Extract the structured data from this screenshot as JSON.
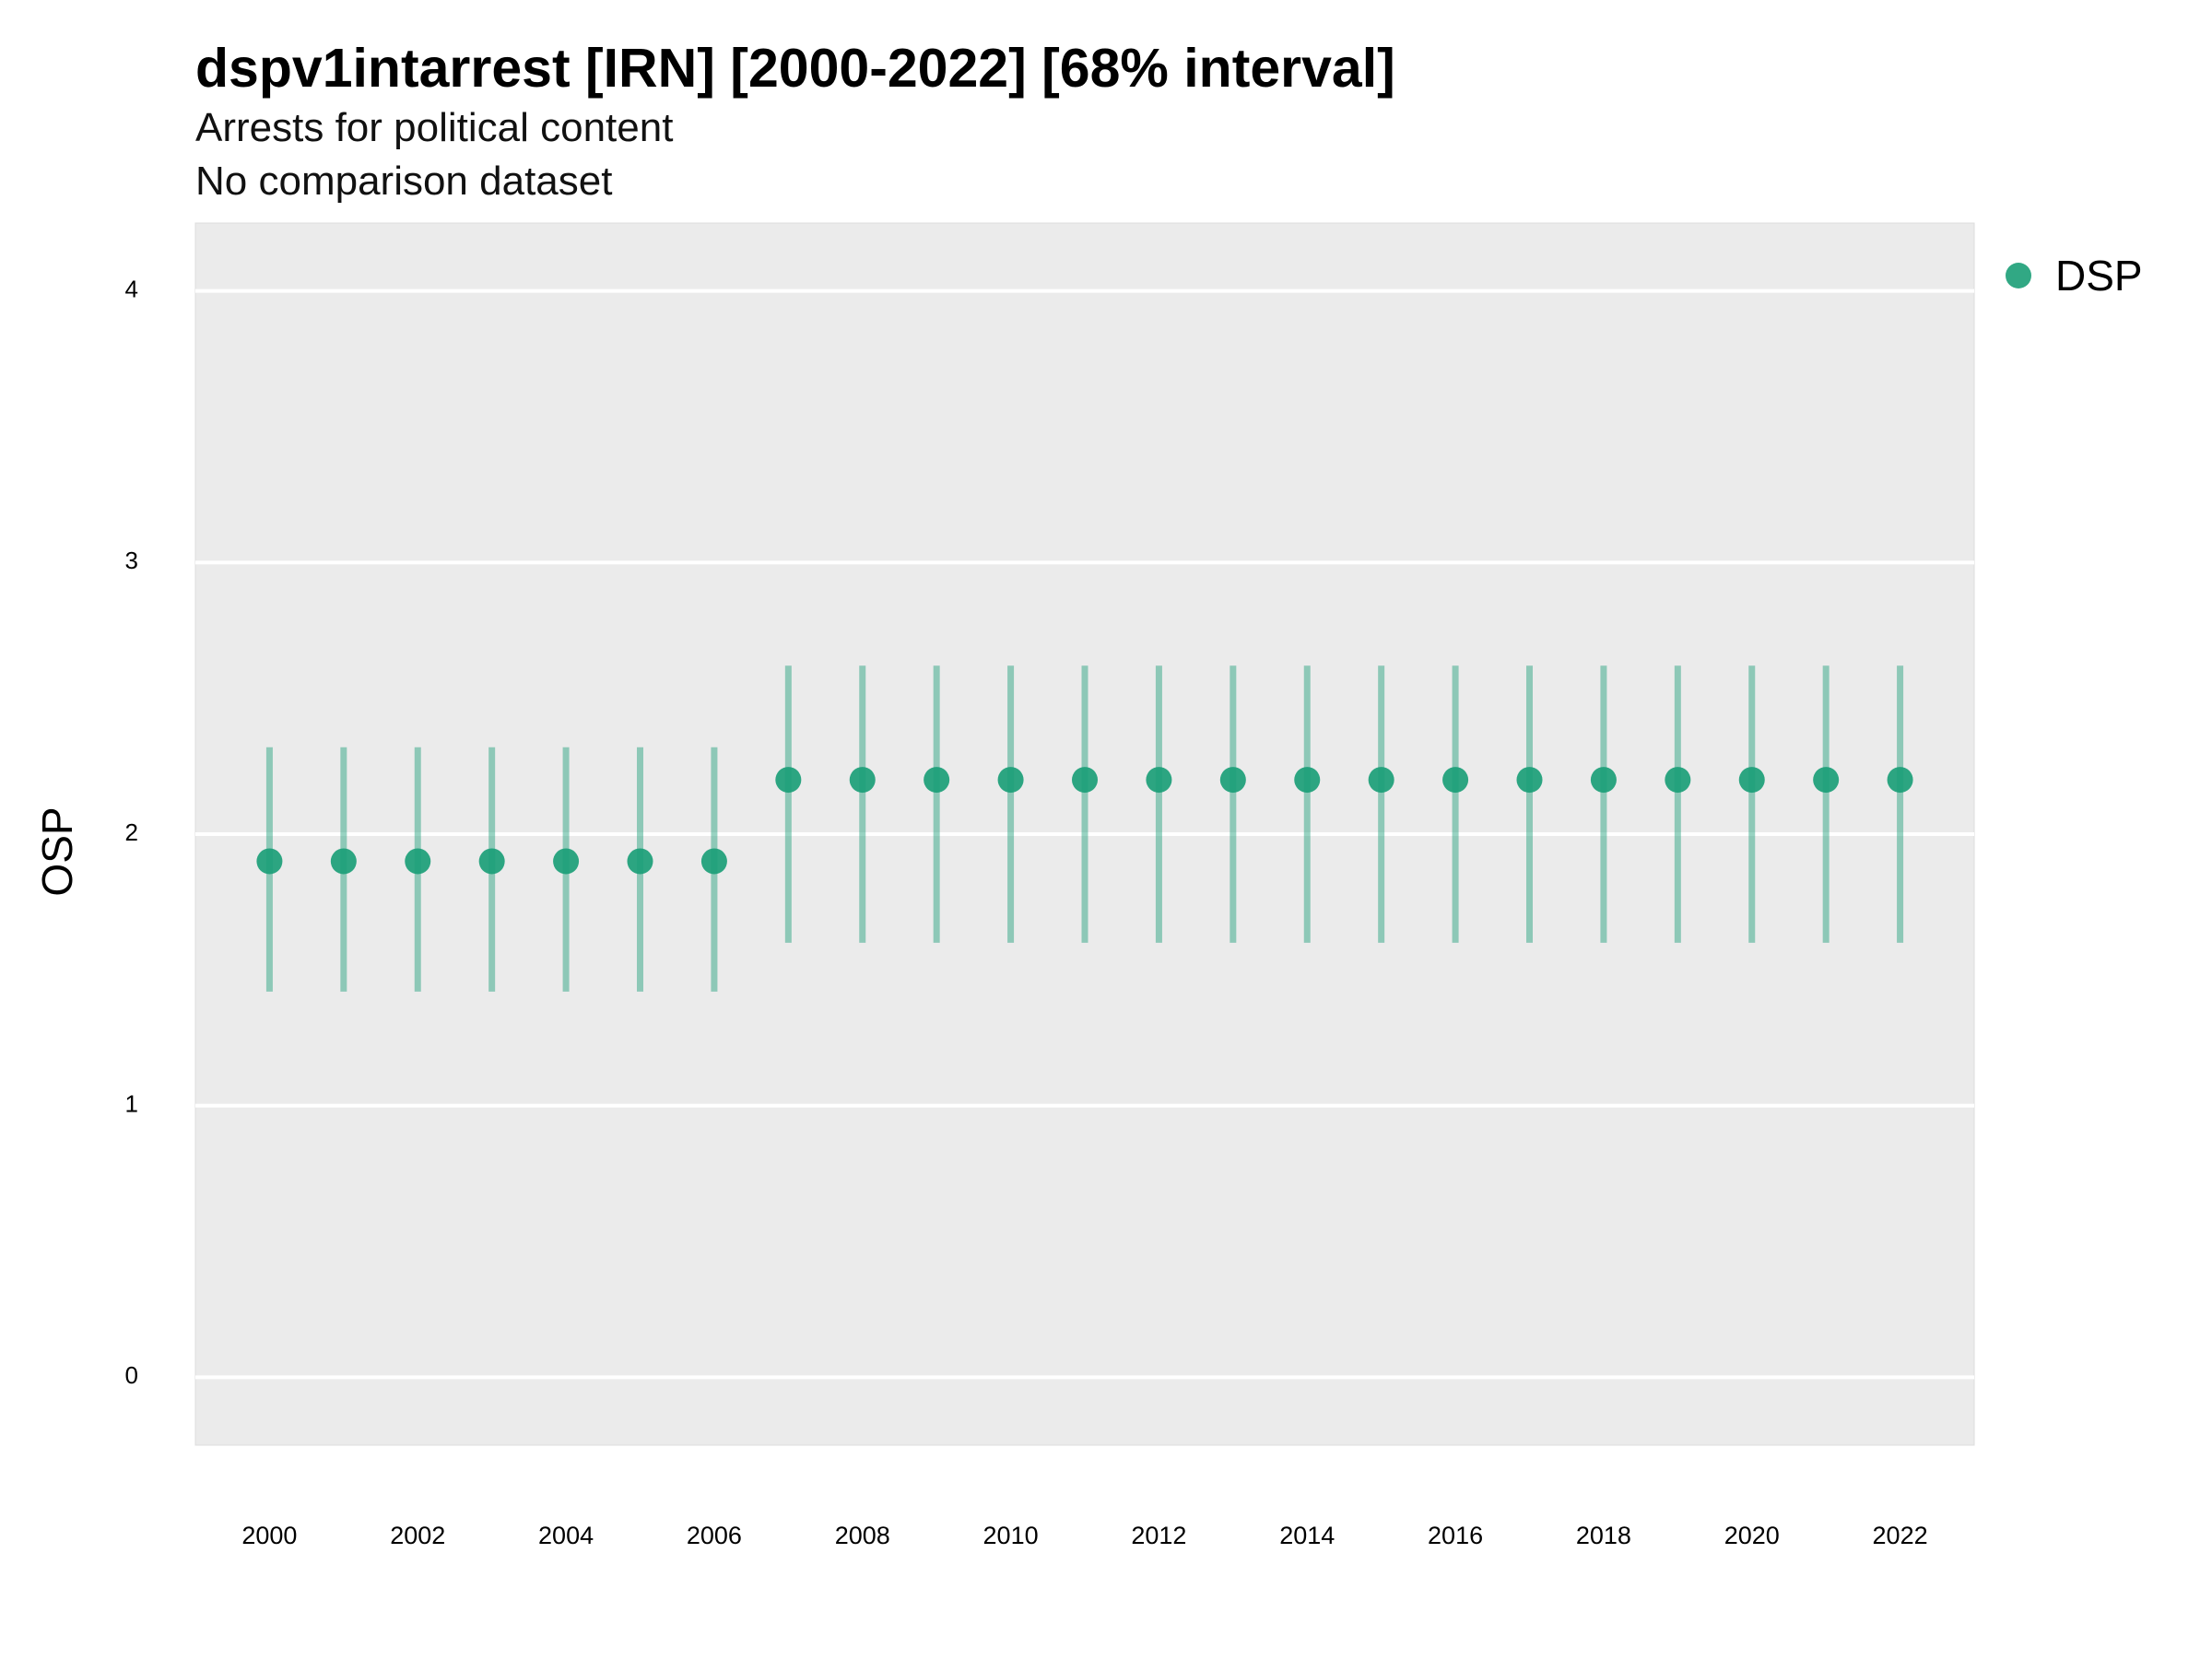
{
  "chart_data": {
    "type": "scatter",
    "title": "dspv1intarrest [IRN] [2000-2022] [68% interval]",
    "subtitle": "Arrests for political content",
    "subtitle2": "No comparison dataset",
    "xlabel": "",
    "ylabel": "OSP",
    "ylim": [
      -0.25,
      4.25
    ],
    "yticks": [
      0,
      1,
      2,
      3,
      4
    ],
    "xlim": [
      1999,
      2023
    ],
    "xticks": [
      2000,
      2002,
      2004,
      2006,
      2008,
      2010,
      2012,
      2014,
      2016,
      2018,
      2020,
      2022
    ],
    "grid": true,
    "legend_position": "right-top",
    "series": [
      {
        "name": "DSP",
        "color": "#1b9e77",
        "x": [
          2000,
          2001,
          2002,
          2003,
          2004,
          2005,
          2006,
          2007,
          2008,
          2009,
          2010,
          2011,
          2012,
          2013,
          2014,
          2015,
          2016,
          2017,
          2018,
          2019,
          2020,
          2021,
          2022
        ],
        "y": [
          1.9,
          1.9,
          1.9,
          1.9,
          1.9,
          1.9,
          1.9,
          2.2,
          2.2,
          2.2,
          2.2,
          2.2,
          2.2,
          2.2,
          2.2,
          2.2,
          2.2,
          2.2,
          2.2,
          2.2,
          2.2,
          2.2,
          2.2
        ],
        "lower": [
          1.42,
          1.42,
          1.42,
          1.42,
          1.42,
          1.42,
          1.42,
          1.6,
          1.6,
          1.6,
          1.6,
          1.6,
          1.6,
          1.6,
          1.6,
          1.6,
          1.6,
          1.6,
          1.6,
          1.6,
          1.6,
          1.6,
          1.6
        ],
        "upper": [
          2.32,
          2.32,
          2.32,
          2.32,
          2.32,
          2.32,
          2.32,
          2.62,
          2.62,
          2.62,
          2.62,
          2.62,
          2.62,
          2.62,
          2.62,
          2.62,
          2.62,
          2.62,
          2.62,
          2.62,
          2.62,
          2.62,
          2.62
        ]
      }
    ]
  }
}
